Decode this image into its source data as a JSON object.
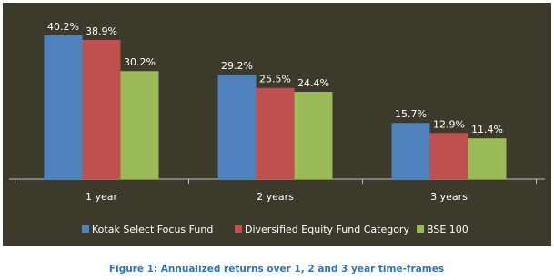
{
  "chart_data": {
    "type": "bar",
    "categories": [
      "1 year",
      "2 years",
      "3 years"
    ],
    "series": [
      {
        "name": "Kotak Select Focus Fund",
        "color": "#4f81bd",
        "values": [
          40.2,
          29.2,
          15.7
        ],
        "value_labels": [
          "40.2%",
          "29.2%",
          "15.7%"
        ]
      },
      {
        "name": "Diversified Equity Fund Category",
        "color": "#c0504d",
        "values": [
          38.9,
          25.5,
          12.9
        ],
        "value_labels": [
          "38.9%",
          "25.5%",
          "12.9%"
        ]
      },
      {
        "name": "BSE 100",
        "color": "#9bbb59",
        "values": [
          30.2,
          24.4,
          11.4
        ],
        "value_labels": [
          "30.2%",
          "24.4%",
          "11.4%"
        ]
      }
    ],
    "ylim": [
      0,
      45
    ],
    "background": "#3b3a2b"
  },
  "caption": "Figure 1: Annualized returns over 1, 2 and 3 year time-frames"
}
